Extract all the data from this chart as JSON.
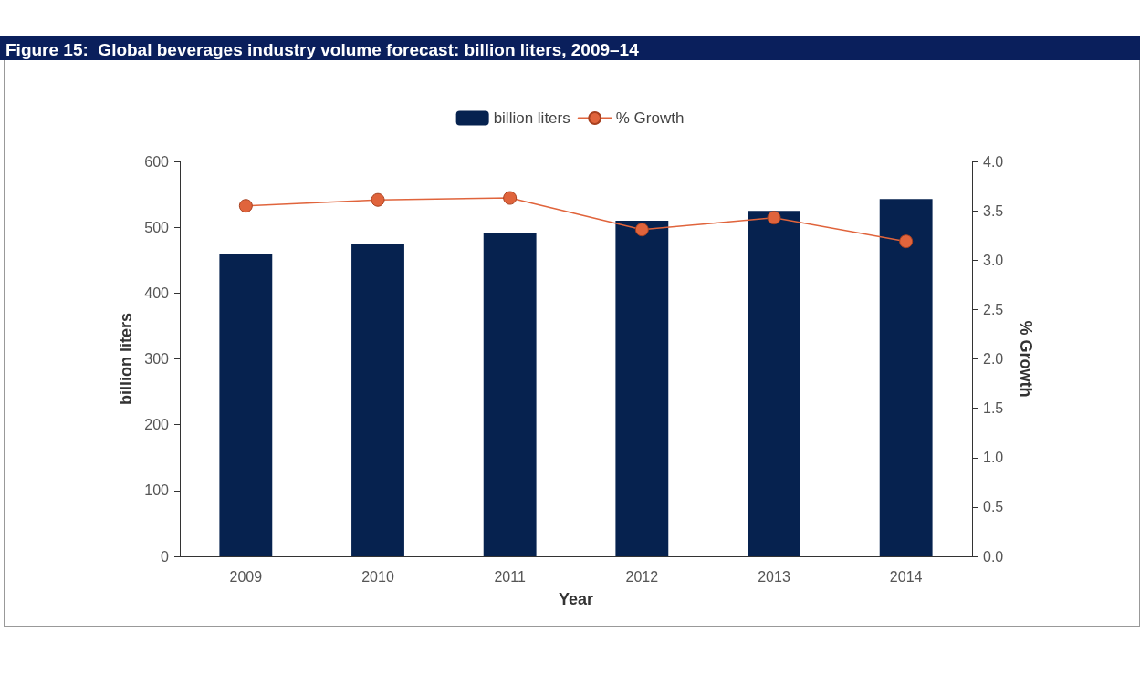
{
  "chart_data": {
    "type": "bar",
    "title": "Figure 15:  Global beverages industry volume forecast: billion liters, 2009–14",
    "categories": [
      "2009",
      "2010",
      "2011",
      "2012",
      "2013",
      "2014"
    ],
    "series": [
      {
        "name": "billion liters",
        "color": "#06224f",
        "values": [
          459,
          475,
          492,
          510,
          525,
          543
        ]
      },
      {
        "name": "% Growth",
        "type": "line",
        "axis": "y2",
        "color": "#e0643c",
        "values": [
          3.55,
          3.61,
          3.63,
          3.31,
          3.43,
          3.19
        ]
      }
    ],
    "xlabel": "Year",
    "ylabel": "billion liters",
    "y2label": "% Growth",
    "ylim": [
      0,
      600
    ],
    "yticks": [
      0,
      100,
      200,
      300,
      400,
      500,
      600
    ],
    "y2lim": [
      0,
      4
    ],
    "y2ticks": [
      {
        "value": 0,
        "label": "0.0"
      },
      {
        "value": 0.5,
        "label": "0.5"
      },
      {
        "value": 1,
        "label": "1.0"
      },
      {
        "value": 1.5,
        "label": "1.5"
      },
      {
        "value": 2,
        "label": "2.0"
      },
      {
        "value": 2.5,
        "label": "2.5"
      },
      {
        "value": 3,
        "label": "3.0"
      },
      {
        "value": 3.5,
        "label": "3.5"
      },
      {
        "value": 4,
        "label": "4.0"
      }
    ],
    "grid": false,
    "legend": "top",
    "marker": "circle",
    "line_style": "solid"
  }
}
